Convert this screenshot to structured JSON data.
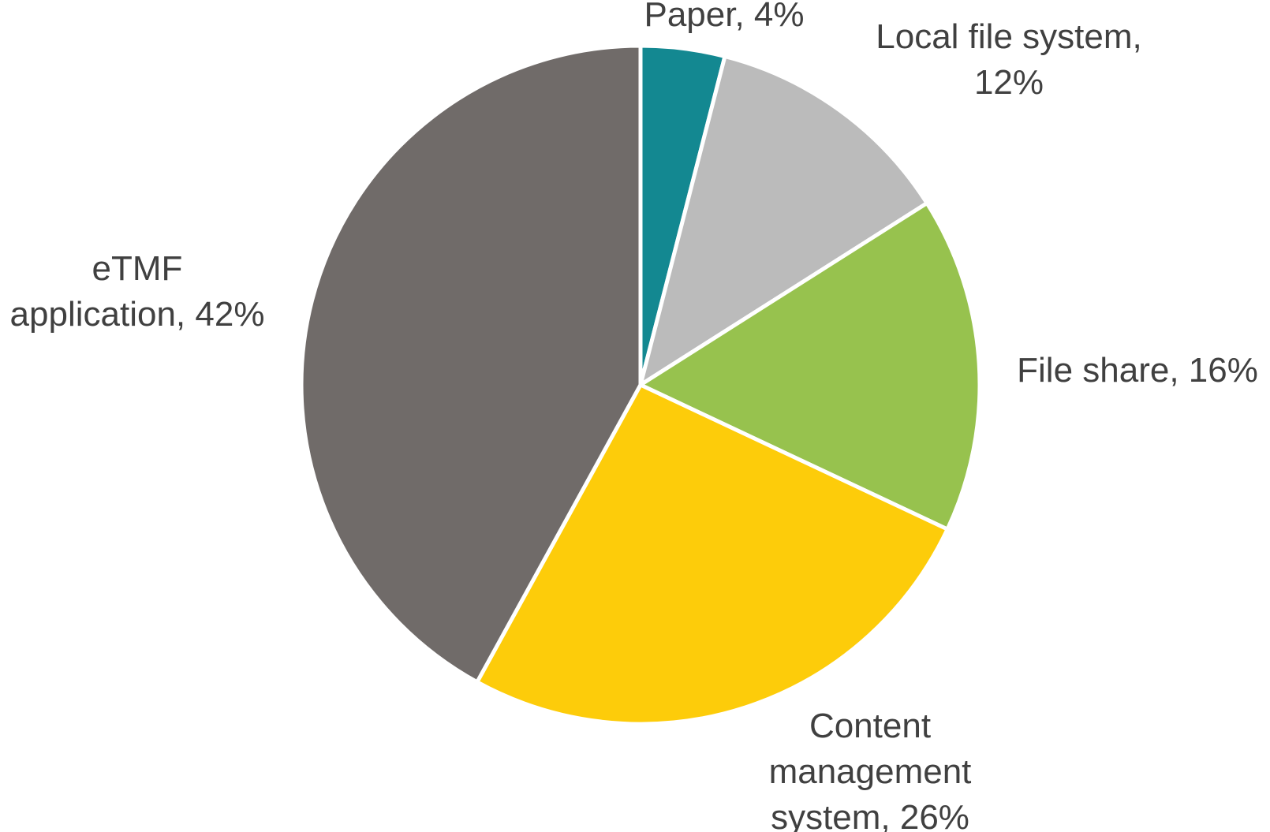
{
  "chart_data": {
    "type": "pie",
    "start_angle_deg": 0,
    "direction": "clockwise",
    "slices": [
      {
        "label": "Paper",
        "value": 4,
        "label_lines": [
          "Paper, 4%"
        ],
        "color": "#138891"
      },
      {
        "label": "Local file system",
        "value": 12,
        "label_lines": [
          "Local file system,",
          "12%"
        ],
        "color": "#BBBBBB"
      },
      {
        "label": "File share",
        "value": 16,
        "label_lines": [
          "File share, 16%"
        ],
        "color": "#97C24E"
      },
      {
        "label": "Content management system",
        "value": 26,
        "label_lines": [
          "Content",
          "management",
          "system, 26%"
        ],
        "color": "#FDCC0A"
      },
      {
        "label": "eTMF application",
        "value": 42,
        "label_lines": [
          "eTMF",
          "application, 42%"
        ],
        "color": "#706B69"
      }
    ]
  }
}
